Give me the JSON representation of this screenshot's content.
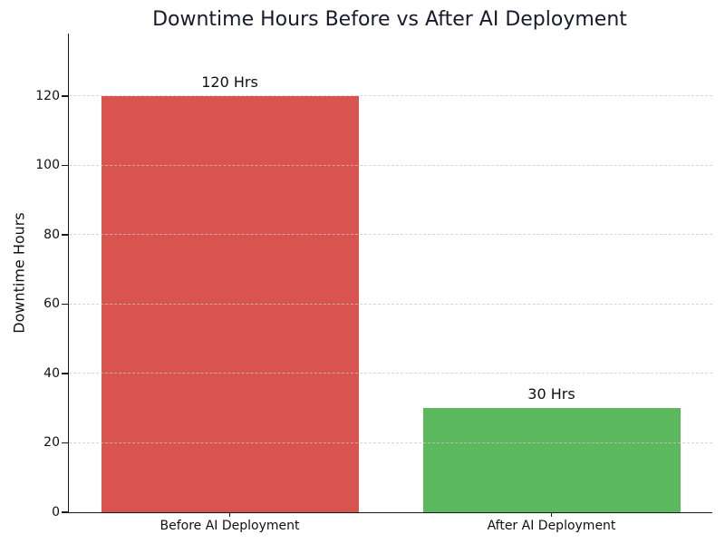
{
  "chart_data": {
    "type": "bar",
    "title": "Downtime Hours Before vs After AI Deployment",
    "xlabel": "",
    "ylabel": "Downtime Hours",
    "categories": [
      "Before AI Deployment",
      "After AI Deployment"
    ],
    "values": [
      120,
      30
    ],
    "bar_labels": [
      "120 Hrs",
      "30 Hrs"
    ],
    "bar_colors": [
      "#d9534f",
      "#5cb85c"
    ],
    "yticks": [
      0,
      20,
      40,
      60,
      80,
      100,
      120
    ],
    "ylim": [
      0,
      138
    ],
    "bar_width_fraction": 0.8,
    "grid": {
      "axis": "y",
      "style": "dashed",
      "drawn_over_bars": true
    },
    "legend": "none"
  },
  "style": {
    "background": "#ffffff",
    "title_color": "#1a1a2e",
    "text_color": "#111111",
    "axis_color": "#1a1a1a",
    "grid_color": "#c8c8c8"
  }
}
